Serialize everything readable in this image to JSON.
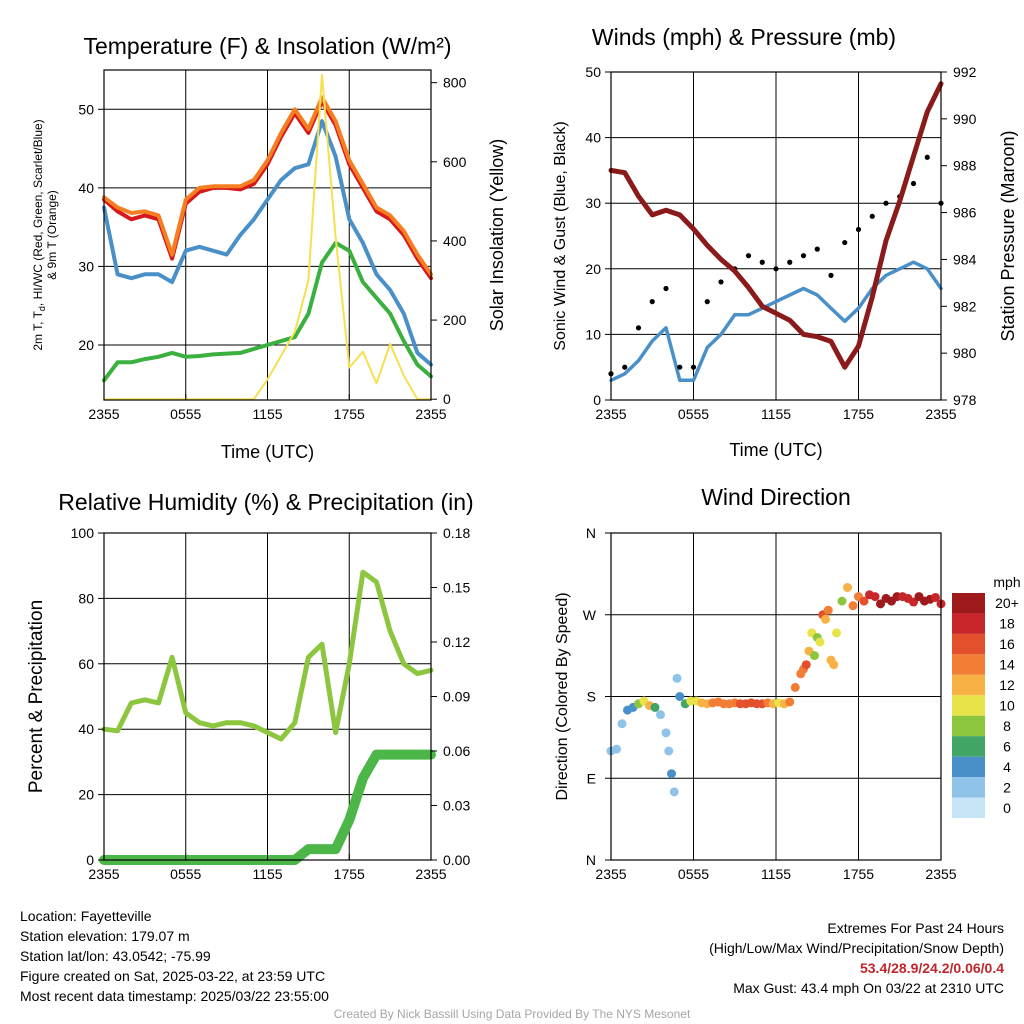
{
  "chart_data": [
    {
      "type": "line",
      "title": "Temperature (F) & Insolation (W/m²)",
      "xlabel": "Time (UTC)",
      "ylabel_lines": [
        "2m T, T",
        "d",
        ", HI/WC (Red, Green, Scarlet/Blue)",
        "& 9m T (Orange)"
      ],
      "y2label": "Solar Insolation (Yellow)",
      "x_ticks": [
        "2355",
        "0555",
        "1155",
        "1755",
        "2355"
      ],
      "ylim": [
        13,
        55
      ],
      "y_ticks": [
        20,
        30,
        40,
        50
      ],
      "y2lim": [
        -2,
        832
      ],
      "y2_ticks": [
        0,
        200,
        400,
        600,
        800
      ],
      "x": [
        0,
        1,
        2,
        3,
        4,
        5,
        6,
        7,
        8,
        9,
        10,
        11,
        12,
        13,
        14,
        15,
        16,
        17,
        18,
        19,
        20,
        21,
        22,
        23,
        24
      ],
      "series": [
        {
          "key": "temp_2m",
          "color": "#d7191c",
          "axis": "left",
          "values": [
            38.5,
            37,
            36,
            36.5,
            36,
            31,
            38,
            39.5,
            40,
            40,
            39.8,
            40.5,
            43,
            46.5,
            49.5,
            47,
            51,
            48,
            43,
            40,
            37,
            36,
            34,
            31,
            28.5
          ]
        },
        {
          "key": "temp_9m",
          "color": "#f57f20",
          "axis": "left",
          "values": [
            38.8,
            37.5,
            36.8,
            37,
            36.5,
            31.5,
            38.5,
            40,
            40.2,
            40.2,
            40.2,
            41,
            43.5,
            47,
            50,
            47.5,
            51.5,
            48.5,
            43.5,
            40.5,
            37.5,
            36.5,
            34.5,
            31.5,
            29
          ]
        },
        {
          "key": "heat_index_wind_chill",
          "color": "#4a90c8",
          "axis": "left",
          "values": [
            37.5,
            29,
            28.5,
            29,
            29,
            28,
            32,
            32.5,
            32,
            31.5,
            34,
            36,
            38.5,
            41,
            42.5,
            43,
            48.5,
            44,
            36,
            33,
            29,
            27,
            24,
            19,
            17.5
          ]
        },
        {
          "key": "dewpoint",
          "color": "#3ab03e",
          "axis": "left",
          "values": [
            15.5,
            17.8,
            17.8,
            18.2,
            18.5,
            19,
            18.5,
            18.6,
            18.8,
            18.9,
            19,
            19.5,
            20,
            20.5,
            21,
            24,
            30.5,
            33,
            32,
            28,
            26,
            24,
            20.5,
            17.5,
            16
          ]
        },
        {
          "key": "insolation",
          "color": "#f5e050",
          "axis": "right",
          "values": [
            0,
            0,
            0,
            0,
            0,
            0,
            0,
            0,
            0,
            0,
            0,
            0,
            50,
            110,
            170,
            300,
            820,
            410,
            80,
            120,
            40,
            140,
            60,
            0,
            0
          ]
        }
      ]
    },
    {
      "type": "line",
      "title": "Winds (mph) & Pressure (mb)",
      "xlabel": "Time (UTC)",
      "ylabel": "Sonic Wind & Gust (Blue, Black)",
      "y2label": "Station Pressure (Maroon)",
      "x_ticks": [
        "2355",
        "0555",
        "1155",
        "1755",
        "2355"
      ],
      "ylim": [
        0,
        50
      ],
      "y_ticks": [
        0,
        10,
        20,
        30,
        40,
        50
      ],
      "y2lim": [
        978,
        992
      ],
      "y2_ticks": [
        978,
        980,
        982,
        984,
        986,
        988,
        990,
        992
      ],
      "x": [
        0,
        1,
        2,
        3,
        4,
        5,
        6,
        7,
        8,
        9,
        10,
        11,
        12,
        13,
        14,
        15,
        16,
        17,
        18,
        19,
        20,
        21,
        22,
        23,
        24
      ],
      "series": [
        {
          "key": "sonic_wind",
          "color": "#4a90c8",
          "axis": "left",
          "style": "line",
          "values": [
            3,
            4,
            6,
            9,
            11,
            3,
            3,
            8,
            10,
            13,
            13,
            14,
            15,
            16,
            17,
            16,
            14,
            12,
            14,
            17,
            19,
            20,
            21,
            20,
            17
          ]
        },
        {
          "key": "gust",
          "color": "#000000",
          "axis": "left",
          "style": "dots",
          "values": [
            4,
            5,
            11,
            15,
            17,
            5,
            5,
            15,
            18,
            20,
            22,
            21,
            20,
            21,
            22,
            23,
            19,
            24,
            26,
            28,
            30,
            31,
            33,
            37,
            30
          ]
        },
        {
          "key": "station_pressure",
          "color": "#8b1a1a",
          "axis": "right",
          "style": "line",
          "values": [
            987.8,
            987.7,
            986.7,
            985.9,
            986.1,
            985.9,
            985.3,
            984.6,
            984,
            983.5,
            982.8,
            982,
            981.7,
            981.4,
            980.8,
            980.7,
            980.5,
            979.4,
            980.3,
            982.4,
            984.8,
            986.5,
            988.4,
            990.3,
            991.5
          ]
        }
      ]
    },
    {
      "type": "line",
      "title": "Relative Humidity (%) & Precipitation (in)",
      "ylabel": "Percent & Precipitation",
      "x_ticks": [
        "2355",
        "0555",
        "1155",
        "1755",
        "2355"
      ],
      "ylim": [
        0,
        100
      ],
      "y_ticks": [
        0,
        20,
        40,
        60,
        80,
        100
      ],
      "y2lim": [
        0,
        0.18
      ],
      "y2_ticks": [
        "0.00",
        "0.03",
        "0.06",
        "0.09",
        "0.12",
        "0.15",
        "0.18"
      ],
      "x": [
        0,
        1,
        2,
        3,
        4,
        5,
        6,
        7,
        8,
        9,
        10,
        11,
        12,
        13,
        14,
        15,
        16,
        17,
        18,
        19,
        20,
        21,
        22,
        23,
        24
      ],
      "series": [
        {
          "key": "relative_humidity",
          "color": "#8cc63f",
          "axis": "left",
          "style": "line",
          "values": [
            40,
            39.5,
            48,
            49,
            48,
            62,
            45,
            42,
            41,
            42,
            42,
            41,
            39,
            37,
            42,
            62,
            66,
            39,
            60,
            88,
            85,
            70,
            60,
            57,
            58
          ]
        },
        {
          "key": "precipitation",
          "color": "#4cb748",
          "axis": "right",
          "style": "thick",
          "values": [
            0,
            0,
            0,
            0,
            0,
            0,
            0,
            0,
            0,
            0,
            0,
            0,
            0,
            0,
            0,
            0.006,
            0.006,
            0.006,
            0.022,
            0.045,
            0.058,
            0.058,
            0.058,
            0.058,
            0.058
          ]
        }
      ]
    },
    {
      "type": "scatter",
      "title": "Wind Direction",
      "ylabel": "Direction (Colored By Speed)",
      "x_ticks": [
        "2355",
        "0555",
        "1155",
        "1755",
        "2355"
      ],
      "y_ticks": [
        "N",
        "E",
        "S",
        "W",
        "N"
      ],
      "ylim": [
        0,
        360
      ],
      "colorbar_title": "mph",
      "colorbar_labels": [
        "0",
        "2",
        "4",
        "6",
        "8",
        "10",
        "12",
        "14",
        "16",
        "18",
        "20+"
      ],
      "colorbar_colors": [
        "#c6e6f7",
        "#8fc3e8",
        "#4a90c8",
        "#41a565",
        "#8cc63f",
        "#e9e34a",
        "#f8b145",
        "#f27e35",
        "#e4502b",
        "#c8262a",
        "#9e1a1d"
      ],
      "x": [
        0,
        0.4,
        0.8,
        1.2,
        1.6,
        2,
        2.4,
        2.8,
        3.2,
        3.6,
        4,
        4.2,
        4.4,
        4.6,
        4.8,
        5,
        5.4,
        5.8,
        6.2,
        6.6,
        7,
        7.4,
        7.8,
        8.2,
        8.6,
        9,
        9.4,
        9.8,
        10.2,
        10.6,
        11,
        11.4,
        11.8,
        12.2,
        12.6,
        13,
        13.4,
        13.8,
        14,
        14.2,
        14.4,
        14.6,
        14.8,
        15,
        15.2,
        15.4,
        15.6,
        15.8,
        16,
        16.2,
        16.4,
        16.8,
        17.2,
        17.6,
        18,
        18.4,
        18.8,
        19.2,
        19.6,
        20,
        20.4,
        20.8,
        21.2,
        21.6,
        22,
        22.4,
        22.8,
        23.2,
        23.6,
        24
      ],
      "values": [
        120,
        122,
        150,
        165,
        168,
        172,
        175,
        170,
        168,
        160,
        140,
        120,
        95,
        75,
        200,
        180,
        172,
        175,
        175,
        173,
        172,
        173,
        174,
        172,
        172,
        173,
        172,
        172,
        173,
        172,
        172,
        173,
        172,
        173,
        172,
        174,
        190,
        205,
        210,
        215,
        230,
        250,
        225,
        245,
        240,
        270,
        265,
        275,
        220,
        215,
        250,
        285,
        300,
        280,
        290,
        285,
        292,
        290,
        282,
        288,
        285,
        290,
        290,
        288,
        284,
        290,
        285,
        287,
        289,
        282
      ],
      "speeds": [
        2,
        2,
        2,
        3,
        4,
        7,
        9,
        11,
        6,
        2,
        2,
        2,
        3,
        1,
        2,
        4,
        6,
        9,
        10,
        11,
        12,
        13,
        14,
        14,
        14,
        14,
        15,
        16,
        15,
        16,
        16,
        14,
        12,
        10,
        12,
        14,
        13,
        13,
        14,
        15,
        12,
        9,
        7,
        8,
        10,
        16,
        12,
        14,
        12,
        11,
        9,
        8,
        11,
        13,
        14,
        16,
        18,
        17,
        19,
        19,
        20,
        19,
        18,
        17,
        18,
        19,
        20,
        19,
        18,
        17
      ]
    }
  ],
  "info": {
    "location": "Location: Fayetteville",
    "elevation": "Station elevation: 179.07 m",
    "latlon": "Station lat/lon: 43.0542; -75.99",
    "created": "Figure created on Sat, 2025-03-22, at 23:59 UTC",
    "recent": "Most recent data timestamp: 2025/03/22 23:55:00",
    "extremes_title": "Extremes For Past 24 Hours",
    "extremes_subtitle": "(High/Low/Max Wind/Precipitation/Snow Depth)",
    "extremes_values": "53.4/28.9/24.2/0.06/0.4",
    "max_gust": "Max Gust: 43.4 mph On 03/22 at 2310 UTC"
  },
  "credit": "Created By Nick Bassill Using Data Provided By The NYS Mesonet"
}
